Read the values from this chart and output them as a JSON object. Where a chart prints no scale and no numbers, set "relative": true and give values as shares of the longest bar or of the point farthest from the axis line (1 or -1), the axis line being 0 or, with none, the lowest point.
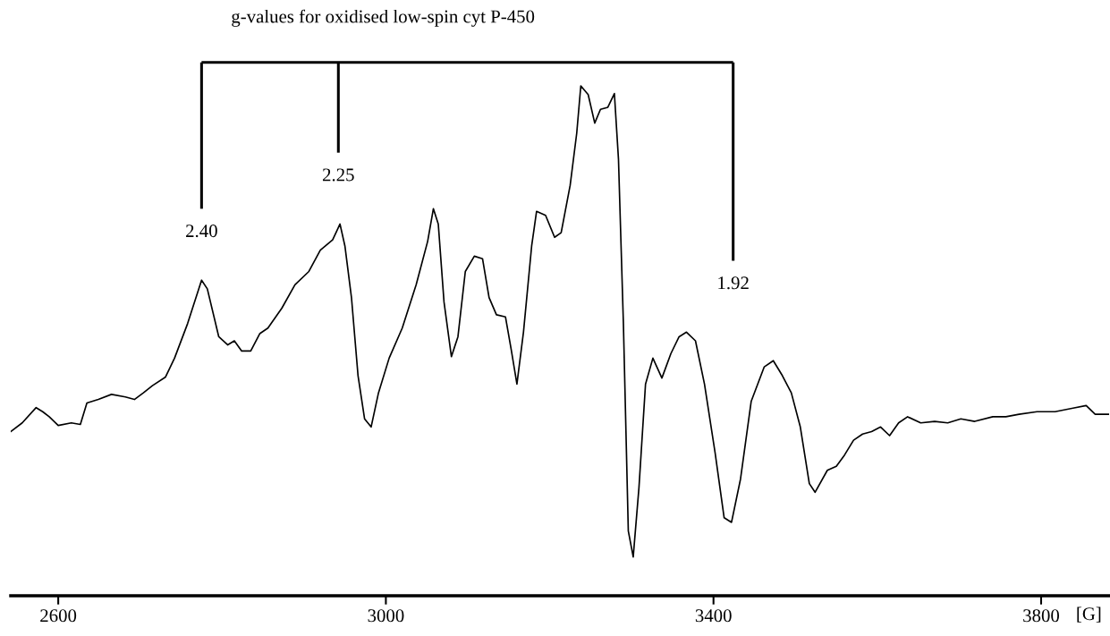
{
  "chart_data": {
    "type": "line",
    "relative": true,
    "title": "g-values for oxidised low-spin cyt P-450",
    "xlabel": "[G]",
    "xlim": [
      2542,
      3883
    ],
    "xticks": [
      2600,
      3000,
      3400,
      3800
    ],
    "tick_labels": "x",
    "grid": false,
    "legend": false,
    "marker": "none",
    "line_style": "solid",
    "series": [
      {
        "color": "#000000",
        "x": [
          2542,
          2556,
          2573,
          2581,
          2589,
          2600,
          2616,
          2627,
          2635,
          2649,
          2665,
          2682,
          2693,
          2704,
          2715,
          2731,
          2742,
          2758,
          2775,
          2782,
          2796,
          2807,
          2815,
          2824,
          2835,
          2846,
          2856,
          2873,
          2889,
          2906,
          2920,
          2935,
          2944,
          2950,
          2958,
          2966,
          2974,
          2982,
          2991,
          3004,
          3020,
          3037,
          3051,
          3058,
          3064,
          3071,
          3080,
          3088,
          3097,
          3108,
          3118,
          3126,
          3135,
          3146,
          3153,
          3160,
          3168,
          3178,
          3184,
          3195,
          3206,
          3214,
          3225,
          3233,
          3238,
          3247,
          3255,
          3262,
          3271,
          3279,
          3284,
          3290,
          3296,
          3302,
          3309,
          3317,
          3326,
          3337,
          3348,
          3358,
          3367,
          3378,
          3389,
          3402,
          3413,
          3422,
          3433,
          3446,
          3462,
          3473,
          3484,
          3495,
          3506,
          3517,
          3524,
          3539,
          3550,
          3560,
          3571,
          3582,
          3593,
          3604,
          3615,
          3626,
          3637,
          3653,
          3670,
          3686,
          3702,
          3719,
          3741,
          3757,
          3773,
          3795,
          3817,
          3839,
          3855,
          3866,
          3883
        ],
        "values": [
          0.322,
          0.339,
          0.369,
          0.361,
          0.351,
          0.334,
          0.339,
          0.336,
          0.378,
          0.385,
          0.395,
          0.39,
          0.385,
          0.398,
          0.412,
          0.429,
          0.466,
          0.534,
          0.619,
          0.602,
          0.508,
          0.492,
          0.5,
          0.48,
          0.48,
          0.514,
          0.525,
          0.564,
          0.61,
          0.636,
          0.678,
          0.698,
          0.729,
          0.686,
          0.585,
          0.432,
          0.347,
          0.331,
          0.398,
          0.466,
          0.525,
          0.61,
          0.695,
          0.759,
          0.729,
          0.576,
          0.469,
          0.508,
          0.636,
          0.666,
          0.661,
          0.585,
          0.551,
          0.547,
          0.483,
          0.415,
          0.517,
          0.686,
          0.754,
          0.746,
          0.703,
          0.712,
          0.805,
          0.907,
          1,
          0.983,
          0.927,
          0.954,
          0.958,
          0.985,
          0.856,
          0.534,
          0.127,
          0.076,
          0.212,
          0.415,
          0.466,
          0.427,
          0.475,
          0.508,
          0.517,
          0.5,
          0.415,
          0.28,
          0.153,
          0.144,
          0.229,
          0.381,
          0.449,
          0.461,
          0.432,
          0.398,
          0.331,
          0.22,
          0.203,
          0.246,
          0.254,
          0.276,
          0.305,
          0.317,
          0.322,
          0.331,
          0.314,
          0.339,
          0.351,
          0.339,
          0.342,
          0.339,
          0.347,
          0.342,
          0.351,
          0.351,
          0.356,
          0.361,
          0.361,
          0.368,
          0.373,
          0.356,
          0.356
        ]
      }
    ],
    "annotations": [
      {
        "text": "2.40",
        "x": 2775
      },
      {
        "text": "2.25",
        "x": 2942
      },
      {
        "text": "1.92",
        "x": 3424
      }
    ]
  }
}
